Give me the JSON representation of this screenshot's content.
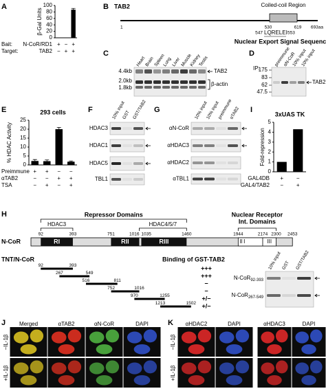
{
  "letters": [
    "A",
    "B",
    "C",
    "D",
    "E",
    "F",
    "G",
    "H",
    "I",
    "J",
    "K"
  ],
  "chart_data": [
    {
      "type": "bar",
      "y_label": "β-Gal Units",
      "values": [
        0,
        0,
        87
      ],
      "errors": [
        0,
        0,
        4
      ],
      "color": "#000000",
      "ylim": [
        0,
        100
      ],
      "yticks": [
        0,
        20,
        40,
        60,
        80,
        100
      ],
      "conditions": [
        {
          "label": "Bait:",
          "name": "N-CoR/RD1",
          "signs": [
            "+",
            "−",
            "+"
          ]
        },
        {
          "label": "Target:",
          "name": "TAB2",
          "signs": [
            "−",
            "+",
            "+"
          ]
        }
      ]
    },
    {
      "type": "bar",
      "title": "293 cells",
      "y_label": "% HDAC Activity",
      "values": [
        2.2,
        2.1,
        20,
        1.8
      ],
      "errors": [
        0.8,
        0.7,
        1,
        0.4
      ],
      "color": "#000000",
      "ylim": [
        0,
        25
      ],
      "yticks": [
        0,
        5,
        10,
        15,
        20,
        25
      ],
      "conditions": [
        {
          "label": "Preimmune",
          "signs": [
            "+",
            "+",
            "−",
            "−"
          ]
        },
        {
          "label": "αTAB2",
          "signs": [
            "−",
            "−",
            "+",
            "+"
          ]
        },
        {
          "label": "TSA",
          "signs": [
            "−",
            "+",
            "−",
            "+"
          ]
        }
      ]
    },
    {
      "type": "bar",
      "title": "3xUAS TK",
      "y_label": "Fold-repression",
      "values": [
        1,
        4.3
      ],
      "color": "#000000",
      "ylim": [
        0,
        5
      ],
      "yticks": [
        0,
        1,
        2,
        3,
        4,
        5
      ],
      "conditions": [
        {
          "label": "GAL4DB",
          "signs": [
            "+",
            "−"
          ]
        },
        {
          "label": "GAL4/TAB2",
          "signs": [
            "−",
            "+"
          ]
        }
      ]
    }
  ],
  "panel_b": {
    "protein": "TAB2",
    "region": "Coiled-coil Region",
    "positions": [
      1,
      530,
      619,
      "693aa"
    ],
    "nes_start": 547,
    "nes_seq": "LQRELEI",
    "nes_end": 553,
    "nes_label": "Nuclear Export Signal Sequence"
  },
  "panel_c": {
    "lanes": [
      "Heart",
      "Brain",
      "Spleen",
      "Lung",
      "Liver",
      "Muscle",
      "Kidney",
      "Testis"
    ],
    "markers": [
      "4.4kb",
      "2.0kb",
      "1.8kb"
    ],
    "bands": [
      "TAB2",
      "β-actin"
    ]
  },
  "panel_d": {
    "ip": "IP:",
    "lanes": [
      "preimmune",
      "αN-CoR",
      "10% input",
      "10% input"
    ],
    "markers": [
      175,
      83,
      62,
      47.5
    ],
    "band": "TAB2"
  },
  "panel_f": {
    "lanes": [
      "10% input",
      "GST",
      "GST/TAB2"
    ],
    "rows": [
      "HDAC3",
      "HDAC1",
      "HDAC5",
      "TBL1"
    ]
  },
  "panel_g": {
    "lanes": [
      "10% input",
      "10% input",
      "preimmune",
      "αTAB2"
    ],
    "rows": [
      "αN-CoR",
      "αHDAC3",
      "αHDAC2",
      "αTBL1"
    ]
  },
  "panel_h": {
    "repressor": "Repressor Domains",
    "hdac3": "HDAC3",
    "hdac457": "HDAC4/5/7",
    "nr": [
      "Nuclear Receptor",
      "Int. Domains"
    ],
    "protein": "N-CoR",
    "domains": [
      "RI",
      "RII",
      "RIII",
      "I",
      "II",
      "III"
    ],
    "positions": [
      92,
      393,
      751,
      1016,
      1035,
      1460,
      1944,
      2174,
      2300,
      2453
    ],
    "construct": "TNT/N-CoR",
    "binding_title": "Binding of GST-TAB2",
    "fragments": [
      {
        "start": 92,
        "end": 393,
        "binding": "+++"
      },
      {
        "start": 267,
        "end": 549,
        "binding": "+++"
      },
      {
        "start": 516,
        "end": 811,
        "binding": "−"
      },
      {
        "start": 752,
        "end": 1016,
        "binding": "−"
      },
      {
        "start": 970,
        "end": 1255,
        "binding": "+/−"
      },
      {
        "start": 1213,
        "end": 1502,
        "binding": "+/−"
      }
    ],
    "blot_lanes": [
      "10% input",
      "GST",
      "GST/TAB2"
    ],
    "blot_rows": [
      {
        "name": "N-CoR",
        "sub": "92-393"
      },
      {
        "name": "N-CoR",
        "sub": "267-549"
      }
    ]
  },
  "panel_j": {
    "columns": [
      "Merged",
      "αTAB2",
      "αN-CoR",
      "DAPI"
    ],
    "rows": [
      "−IL-1β",
      "+IL-1β"
    ]
  },
  "panel_k": {
    "columns": [
      "αHDAC2",
      "DAPI",
      "αHDAC3",
      "DAPI"
    ],
    "rows": [
      "−IL-1β",
      "+IL-1β"
    ]
  }
}
